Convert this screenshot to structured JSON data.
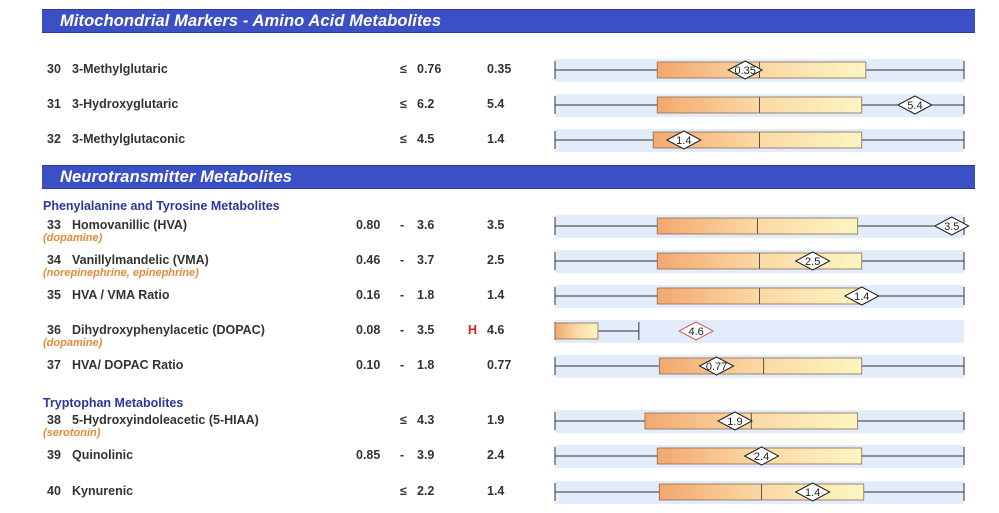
{
  "sections": [
    {
      "title": "Mitochondrial Markers - Amino Acid Metabolites"
    },
    {
      "title": "Neurotransmitter Metabolites"
    }
  ],
  "subheadings": [
    "Phenylalanine and Tyrosine Metabolites",
    "Tryptophan Metabolites"
  ],
  "scale": {
    "axis_min": 0,
    "axis_max": 100
  },
  "rows": [
    {
      "num": "30",
      "name": "3-Methylglutaric",
      "sub": "",
      "low": "",
      "sep": "≤",
      "high": "0.76",
      "flag": "",
      "result": "0.35",
      "box_start": 25,
      "box_end": 76,
      "median": 50,
      "marker": 46.5,
      "line_end": 100,
      "high_flag": false
    },
    {
      "num": "31",
      "name": "3-Hydroxyglutaric",
      "sub": "",
      "low": "",
      "sep": "≤",
      "high": "6.2",
      "flag": "",
      "result": "5.4",
      "box_start": 25,
      "box_end": 75,
      "median": 50,
      "marker": 88,
      "line_end": 100,
      "high_flag": false
    },
    {
      "num": "32",
      "name": "3-Methylglutaconic",
      "sub": "",
      "low": "",
      "sep": "≤",
      "high": "4.5",
      "flag": "",
      "result": "1.4",
      "box_start": 24,
      "box_end": 75,
      "median": 50,
      "marker": 31.5,
      "line_end": 100,
      "high_flag": false
    },
    {
      "num": "33",
      "name": "Homovanillic (HVA)",
      "sub": "(dopamine)",
      "low": "0.80",
      "sep": "-",
      "high": "3.6",
      "flag": "",
      "result": "3.5",
      "box_start": 25,
      "box_end": 74,
      "median": 49.5,
      "marker": 97,
      "line_end": 100,
      "high_flag": false
    },
    {
      "num": "34",
      "name": "Vanillylmandelic (VMA)",
      "sub": "(norepinephrine, epinephrine)",
      "low": "0.46",
      "sep": "-",
      "high": "3.7",
      "flag": "",
      "result": "2.5",
      "box_start": 25,
      "box_end": 75,
      "median": 50,
      "marker": 63,
      "line_end": 100,
      "high_flag": false
    },
    {
      "num": "35",
      "name": "HVA / VMA Ratio",
      "sub": "",
      "low": "0.16",
      "sep": "-",
      "high": "1.8",
      "flag": "",
      "result": "1.4",
      "box_start": 25,
      "box_end": 75,
      "median": 50,
      "marker": 75,
      "line_end": 100,
      "high_flag": false
    },
    {
      "num": "36",
      "name": "Dihydroxyphenylacetic (DOPAC)",
      "sub": "(dopamine)",
      "low": "0.08",
      "sep": "-",
      "high": "3.5",
      "flag": "H",
      "result": "4.6",
      "box_start": 0,
      "box_end": 10.5,
      "median": -1,
      "marker": 34.5,
      "line_end": 20.5,
      "high_flag": true
    },
    {
      "num": "37",
      "name": "HVA/ DOPAC Ratio",
      "sub": "",
      "low": "0.10",
      "sep": "-",
      "high": "1.8",
      "flag": "",
      "result": "0.77",
      "box_start": 25.5,
      "box_end": 75,
      "median": 51,
      "marker": 39.5,
      "line_end": 100,
      "high_flag": false
    },
    {
      "num": "38",
      "name": "5-Hydroxyindoleacetic (5-HIAA)",
      "sub": "(serotonin)",
      "low": "",
      "sep": "≤",
      "high": "4.3",
      "flag": "",
      "result": "1.9",
      "box_start": 22,
      "box_end": 74,
      "median": 48,
      "marker": 44,
      "line_end": 100,
      "high_flag": false
    },
    {
      "num": "39",
      "name": "Quinolinic",
      "sub": "",
      "low": "0.85",
      "sep": "-",
      "high": "3.9",
      "flag": "",
      "result": "2.4",
      "box_start": 25,
      "box_end": 75,
      "median": 50,
      "marker": 50.5,
      "line_end": 100,
      "high_flag": false
    },
    {
      "num": "40",
      "name": "Kynurenic",
      "sub": "",
      "low": "",
      "sep": "≤",
      "high": "2.2",
      "flag": "",
      "result": "1.4",
      "box_start": 25.5,
      "box_end": 75.5,
      "median": 50.5,
      "marker": 63,
      "line_end": 100,
      "high_flag": false
    }
  ],
  "colors": {
    "banner": "#3a50c4",
    "subheading": "#27399a",
    "substance": "#e08a3a",
    "flag_high": "#d62020",
    "box_left": "#f3a86e",
    "box_right": "#fbf6c2",
    "track": "#e3ecfb"
  }
}
